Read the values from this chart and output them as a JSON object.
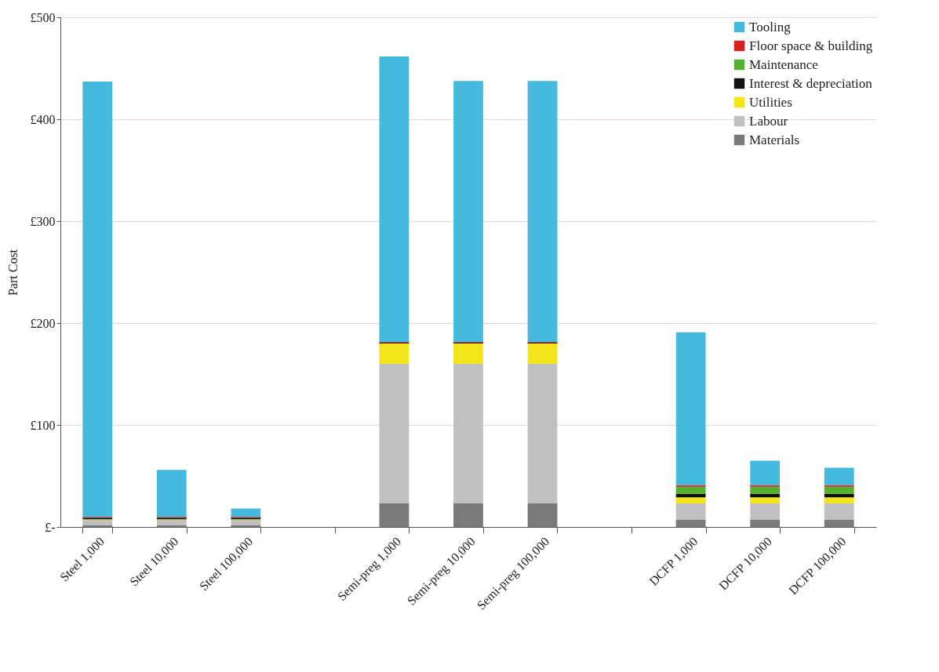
{
  "chart_data": {
    "type": "bar",
    "stacked": true,
    "ylabel": "Part Cost",
    "categories": [
      "Steel 1,000",
      "Steel 10,000",
      "Steel 100,000",
      null,
      "Semi-preg 1,000",
      "Semi-preg 10,000",
      "Semi-preg 100,000",
      null,
      "DCFP 1,000",
      "DCFP 10,000",
      "DCFP 100,000"
    ],
    "series": [
      {
        "name": "Materials",
        "color": "#7a7a7a",
        "values": [
          2,
          2,
          2,
          null,
          23,
          23,
          23,
          null,
          7,
          7,
          7
        ]
      },
      {
        "name": "Labour",
        "color": "#c0c0c0",
        "values": [
          5,
          5,
          5,
          null,
          137,
          137,
          137,
          null,
          16,
          16,
          16
        ]
      },
      {
        "name": "Utilities",
        "color": "#f2e51c",
        "values": [
          0.5,
          0.5,
          0.5,
          null,
          20,
          20,
          20,
          null,
          6,
          6,
          6
        ]
      },
      {
        "name": "Interest & depreciation",
        "color": "#111111",
        "values": [
          1.5,
          1.5,
          1.5,
          null,
          1,
          1,
          1,
          null,
          3.5,
          3.5,
          3.5
        ]
      },
      {
        "name": "Maintenance",
        "color": "#55b030",
        "values": [
          0.5,
          0.5,
          0.5,
          null,
          0,
          0,
          0,
          null,
          7,
          7,
          7
        ]
      },
      {
        "name": "Floor space & building",
        "color": "#d92020",
        "values": [
          0.5,
          0.5,
          0.5,
          null,
          0.5,
          0.5,
          0.5,
          null,
          1.5,
          1.5,
          1.5
        ]
      },
      {
        "name": "Tooling",
        "color": "#45bade",
        "values": [
          427,
          46,
          8,
          null,
          280,
          256,
          256,
          null,
          150,
          24,
          17
        ]
      }
    ],
    "ylim": [
      0,
      500
    ],
    "yticks": [
      {
        "value": 0,
        "label": "£-"
      },
      {
        "value": 100,
        "label": "£100"
      },
      {
        "value": 200,
        "label": "£200"
      },
      {
        "value": 300,
        "label": "£300"
      },
      {
        "value": 400,
        "label": "£400"
      },
      {
        "value": 500,
        "label": "£500"
      }
    ],
    "grid": "y",
    "legend": "top right"
  }
}
